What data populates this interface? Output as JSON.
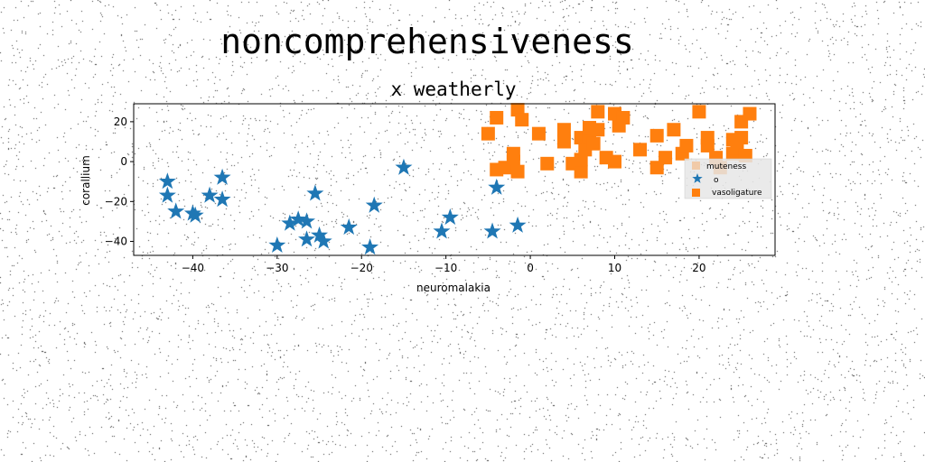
{
  "chart_data": {
    "type": "scatter",
    "suptitle": "noncomprehensiveness",
    "title": "x weatherly",
    "xlabel": "neuromalakia",
    "ylabel": "corallium",
    "xlim": [
      -47,
      29
    ],
    "ylim": [
      -47,
      29
    ],
    "xticks": [
      -40,
      -30,
      -20,
      -10,
      0,
      10,
      20
    ],
    "yticks": [
      -40,
      -20,
      0,
      20
    ],
    "grid": false,
    "legend_position": "center-right",
    "legend": [
      "muteness",
      "o",
      "vasoligature"
    ],
    "series": [
      {
        "name": "muteness",
        "marker": "square",
        "color": "#ff7f0e",
        "points": []
      },
      {
        "name": "o",
        "marker": "star",
        "color": "#1f77b4",
        "points": [
          [
            -43,
            -10
          ],
          [
            -43,
            -17
          ],
          [
            -42,
            -25
          ],
          [
            -40,
            -26
          ],
          [
            -39.7,
            -27
          ],
          [
            -38,
            -17
          ],
          [
            -36.5,
            -8
          ],
          [
            -36.5,
            -19
          ],
          [
            -30,
            -42
          ],
          [
            -28.5,
            -31
          ],
          [
            -27.5,
            -29
          ],
          [
            -26.5,
            -30
          ],
          [
            -26.5,
            -39
          ],
          [
            -25.5,
            -16
          ],
          [
            -25,
            -37
          ],
          [
            -24.5,
            -40
          ],
          [
            -21.5,
            -33
          ],
          [
            -19,
            -43
          ],
          [
            -18.5,
            -22
          ],
          [
            -15,
            -3
          ],
          [
            -10.5,
            -35
          ],
          [
            -9.5,
            -28
          ],
          [
            -4.5,
            -35
          ],
          [
            -4,
            -13
          ],
          [
            -1.5,
            -32
          ]
        ]
      },
      {
        "name": "vasoligature",
        "marker": "square",
        "color": "#ff7f0e",
        "points": [
          [
            -5,
            14
          ],
          [
            -4,
            22
          ],
          [
            -4,
            -4
          ],
          [
            -3,
            -3
          ],
          [
            -2,
            0
          ],
          [
            -2,
            4
          ],
          [
            -1.5,
            26
          ],
          [
            -1.5,
            -5
          ],
          [
            -1,
            21
          ],
          [
            1,
            14
          ],
          [
            2,
            -1
          ],
          [
            4,
            16
          ],
          [
            4,
            10
          ],
          [
            5,
            -1
          ],
          [
            6,
            12
          ],
          [
            6,
            -5
          ],
          [
            6,
            1
          ],
          [
            6.5,
            6
          ],
          [
            7,
            13
          ],
          [
            7,
            17
          ],
          [
            7.5,
            9
          ],
          [
            8,
            25
          ],
          [
            8,
            16
          ],
          [
            9,
            2
          ],
          [
            10,
            24
          ],
          [
            10,
            0
          ],
          [
            10.5,
            18
          ],
          [
            11,
            22
          ],
          [
            13,
            6
          ],
          [
            15,
            13
          ],
          [
            15,
            -3
          ],
          [
            16,
            2
          ],
          [
            17,
            16
          ],
          [
            18,
            4
          ],
          [
            18.5,
            8
          ],
          [
            20,
            25
          ],
          [
            21,
            12
          ],
          [
            21,
            8
          ],
          [
            22,
            2
          ],
          [
            22.5,
            -3
          ],
          [
            24,
            4
          ],
          [
            24,
            11
          ],
          [
            24.5,
            7
          ],
          [
            25,
            20
          ],
          [
            25,
            12
          ],
          [
            25.5,
            3
          ],
          [
            26,
            24
          ]
        ]
      }
    ]
  }
}
